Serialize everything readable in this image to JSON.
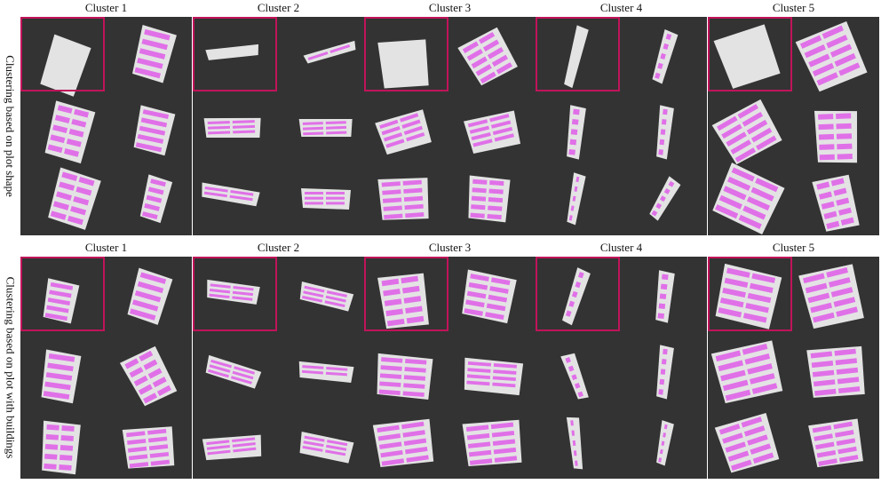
{
  "row_labels": [
    "Clustering based on plot shape",
    "Clustering based on plot with buildings"
  ],
  "cluster_titles": [
    "Cluster 1",
    "Cluster 2",
    "Cluster 3",
    "Cluster 4",
    "Cluster 5"
  ],
  "colors": {
    "panel_bg": "#333333",
    "plot_fill": "#e3e3e3",
    "building_fill": "#e070e8",
    "highlight_border": "#c0145a"
  }
}
